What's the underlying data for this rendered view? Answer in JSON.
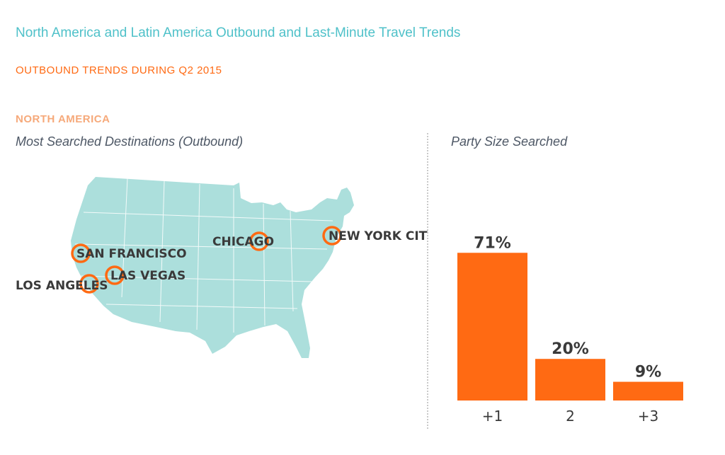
{
  "header": {
    "title": "North America and Latin America Outbound and Last-Minute Travel Trends",
    "subtitle": "OUTBOUND TRENDS DURING Q2 2015",
    "region": "NORTH AMERICA"
  },
  "map": {
    "title": "Most Searched Destinations (Outbound)",
    "fill_color": "#acdfdc",
    "ring_color": "#ff6a13",
    "cities": [
      {
        "name": "SAN FRANCISCO"
      },
      {
        "name": "LOS ANGELES"
      },
      {
        "name": "LAS VEGAS"
      },
      {
        "name": "CHICAGO"
      },
      {
        "name": "NEW YORK CITY"
      }
    ]
  },
  "chart_data": {
    "type": "bar",
    "title": "Party Size Searched",
    "categories": [
      "+1",
      "2",
      "+3"
    ],
    "values": [
      71,
      20,
      9
    ],
    "value_labels": [
      "71%",
      "20%",
      "9%"
    ],
    "ylim": [
      0,
      100
    ],
    "grid": false,
    "bar_color": "#ff6a13"
  }
}
